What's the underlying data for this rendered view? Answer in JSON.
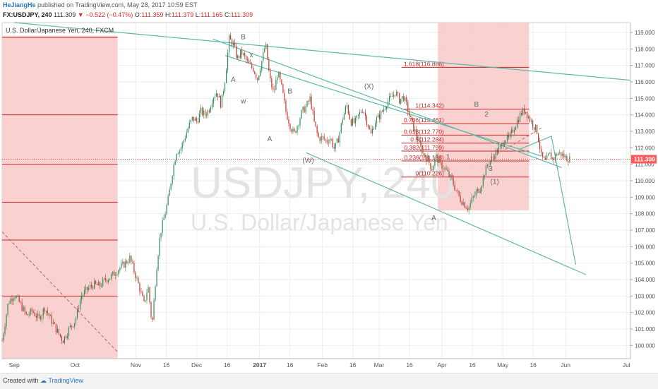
{
  "header": {
    "author": "HeJiangHe",
    "published": "published on TradingView.com, May 28, 2017 10:59 EST",
    "symbol": "FX:USDJPY, 240",
    "price": "111.309",
    "change": "−0.522 (−0.47%)",
    "o_label": "O:",
    "o_value": "111.359",
    "h_label": "H:",
    "h_value": "111.379",
    "l_label": "L:",
    "l_value": "111.165",
    "c_label": "C:",
    "c_value": "111.309"
  },
  "footer": {
    "created_with": "Created with",
    "brand": "TradingView"
  },
  "chart_data": {
    "type": "candlestick",
    "legend_title": "U.S. Dollar/Japanese Yen, 240, FXCM",
    "watermark_symbol": "USDJPY, 240",
    "watermark_name": "U.S. Dollar/Japanese Yen",
    "ylim": [
      99.2,
      119.6
    ],
    "xlim": [
      0,
      310
    ],
    "y_ticks": [
      "100.000",
      "101.000",
      "102.000",
      "103.000",
      "104.000",
      "105.000",
      "106.000",
      "107.000",
      "108.000",
      "109.000",
      "110.000",
      "111.000",
      "112.000",
      "113.000",
      "114.000",
      "115.000",
      "116.000",
      "117.000",
      "118.000",
      "119.000"
    ],
    "x_ticks": [
      {
        "label": "Sep",
        "x": 6
      },
      {
        "label": "Oct",
        "x": 36
      },
      {
        "label": "Nov",
        "x": 66
      },
      {
        "label": "16",
        "x": 81
      },
      {
        "label": "Dec",
        "x": 96
      },
      {
        "label": "16",
        "x": 111
      },
      {
        "label": "2017",
        "x": 127
      },
      {
        "label": "16",
        "x": 142
      },
      {
        "label": "Feb",
        "x": 158
      },
      {
        "label": "16",
        "x": 173
      },
      {
        "label": "Mar",
        "x": 186
      },
      {
        "label": "16",
        "x": 201
      },
      {
        "label": "Apr",
        "x": 217
      },
      {
        "label": "16",
        "x": 232
      },
      {
        "label": "May",
        "x": 247
      },
      {
        "label": "16",
        "x": 262
      },
      {
        "label": "Jun",
        "x": 278
      },
      {
        "label": "Jul",
        "x": 308
      }
    ],
    "current_price": 111.309,
    "current_price_label": "111.309",
    "price_path": [
      [
        0,
        100.3
      ],
      [
        3,
        102.6
      ],
      [
        6,
        103.1
      ],
      [
        9,
        102.5
      ],
      [
        12,
        101.8
      ],
      [
        15,
        102.1
      ],
      [
        18,
        101.6
      ],
      [
        21,
        102.3
      ],
      [
        24,
        101.6
      ],
      [
        27,
        100.9
      ],
      [
        30,
        100.3
      ],
      [
        33,
        101.0
      ],
      [
        36,
        101.5
      ],
      [
        39,
        103.0
      ],
      [
        42,
        103.4
      ],
      [
        45,
        103.7
      ],
      [
        48,
        103.6
      ],
      [
        51,
        104.0
      ],
      [
        54,
        104.2
      ],
      [
        57,
        104.6
      ],
      [
        60,
        104.9
      ],
      [
        63,
        105.3
      ],
      [
        66,
        104.2
      ],
      [
        68,
        103.4
      ],
      [
        70,
        102.5
      ],
      [
        72,
        103.6
      ],
      [
        74,
        101.2
      ],
      [
        76,
        104.5
      ],
      [
        78,
        106.8
      ],
      [
        80,
        107.8
      ],
      [
        82,
        108.9
      ],
      [
        84,
        110.5
      ],
      [
        86,
        111.8
      ],
      [
        88,
        111.9
      ],
      [
        90,
        112.6
      ],
      [
        92,
        113.3
      ],
      [
        94,
        113.8
      ],
      [
        96,
        113.6
      ],
      [
        98,
        114.2
      ],
      [
        100,
        114.0
      ],
      [
        102,
        114.3
      ],
      [
        104,
        115.1
      ],
      [
        106,
        115.4
      ],
      [
        108,
        114.6
      ],
      [
        110,
        116.2
      ],
      [
        112,
        118.6
      ],
      [
        114,
        118.3
      ],
      [
        116,
        117.4
      ],
      [
        118,
        117.8
      ],
      [
        120,
        117.4
      ],
      [
        122,
        117.0
      ],
      [
        124,
        116.8
      ],
      [
        126,
        116.2
      ],
      [
        128,
        117.2
      ],
      [
        130,
        118.3
      ],
      [
        132,
        116.2
      ],
      [
        134,
        115.3
      ],
      [
        136,
        116.6
      ],
      [
        138,
        115.6
      ],
      [
        140,
        114.2
      ],
      [
        142,
        113.4
      ],
      [
        144,
        112.8
      ],
      [
        146,
        113.5
      ],
      [
        148,
        114.2
      ],
      [
        150,
        114.5
      ],
      [
        152,
        115.0
      ],
      [
        154,
        113.5
      ],
      [
        156,
        112.6
      ],
      [
        158,
        112.6
      ],
      [
        160,
        112.4
      ],
      [
        162,
        112.6
      ],
      [
        164,
        111.9
      ],
      [
        166,
        112.6
      ],
      [
        168,
        113.8
      ],
      [
        170,
        114.6
      ],
      [
        172,
        113.6
      ],
      [
        174,
        113.5
      ],
      [
        176,
        114.0
      ],
      [
        178,
        114.4
      ],
      [
        180,
        113.6
      ],
      [
        182,
        112.8
      ],
      [
        184,
        113.6
      ],
      [
        186,
        113.9
      ],
      [
        188,
        114.3
      ],
      [
        190,
        114.8
      ],
      [
        192,
        115.0
      ],
      [
        194,
        115.4
      ],
      [
        196,
        114.9
      ],
      [
        198,
        115.1
      ],
      [
        200,
        114.4
      ],
      [
        202,
        113.5
      ],
      [
        204,
        112.9
      ],
      [
        206,
        112.2
      ],
      [
        208,
        111.6
      ],
      [
        210,
        111.3
      ],
      [
        212,
        110.7
      ],
      [
        214,
        111.5
      ],
      [
        216,
        111.0
      ],
      [
        218,
        110.8
      ],
      [
        220,
        110.4
      ],
      [
        222,
        110.0
      ],
      [
        224,
        109.4
      ],
      [
        226,
        108.9
      ],
      [
        228,
        108.6
      ],
      [
        230,
        108.3
      ],
      [
        232,
        108.9
      ],
      [
        234,
        109.3
      ],
      [
        236,
        109.6
      ],
      [
        238,
        110.5
      ],
      [
        240,
        111.1
      ],
      [
        242,
        111.4
      ],
      [
        244,
        111.8
      ],
      [
        246,
        112.0
      ],
      [
        248,
        112.6
      ],
      [
        250,
        112.5
      ],
      [
        252,
        113.1
      ],
      [
        254,
        113.6
      ],
      [
        256,
        114.1
      ],
      [
        258,
        114.3
      ],
      [
        260,
        113.8
      ],
      [
        262,
        113.4
      ],
      [
        264,
        113.0
      ],
      [
        266,
        111.5
      ],
      [
        268,
        111.1
      ],
      [
        270,
        111.6
      ],
      [
        272,
        111.3
      ],
      [
        274,
        111.7
      ],
      [
        276,
        111.6
      ],
      [
        278,
        111.4
      ],
      [
        280,
        111.3
      ]
    ],
    "shaded_zones": [
      {
        "x0": 0,
        "x1": 57,
        "y0": 99.2,
        "y1": 118.8,
        "color": "#f9c9c9"
      },
      {
        "x0": 215,
        "x1": 260,
        "y0": 108.2,
        "y1": 119.6,
        "color": "#f9c9c9"
      }
    ],
    "sep_h_levels": [
      118.7,
      114.0,
      111.0,
      108.7,
      106.4,
      103.0
    ],
    "fib_levels": [
      {
        "ratio": "1.618",
        "price": 116.886,
        "label": "1.618(116.886)"
      },
      {
        "ratio": "1",
        "price": 114.342,
        "label": "1(114.342)"
      },
      {
        "ratio": "0.786",
        "price": 113.461,
        "label": "0.786(113.461)"
      },
      {
        "ratio": "0.618",
        "price": 112.77,
        "label": "0.618(112.770)"
      },
      {
        "ratio": "0.5",
        "price": 112.284,
        "label": "0.5(112.284)"
      },
      {
        "ratio": "0.382",
        "price": 111.799,
        "label": "0.382(111.799)"
      },
      {
        "ratio": "0.236",
        "price": 111.198,
        "label": "0.236(111.198)"
      },
      {
        "ratio": "0",
        "price": 110.226,
        "label": "0(110.226)"
      }
    ],
    "fib_range": [
      197,
      260
    ],
    "trendlines": [
      {
        "x0": 6,
        "y0": 119.6,
        "x1": 310,
        "y1": 116.1
      },
      {
        "x0": 104,
        "y0": 118.6,
        "x1": 276,
        "y1": 110.8
      },
      {
        "x0": 150,
        "y0": 111.7,
        "x1": 288,
        "y1": 104.3
      },
      {
        "x0": 110,
        "y0": 117.6,
        "x1": 266,
        "y1": 111.5
      }
    ],
    "projection": [
      [
        255,
        111.9
      ],
      [
        271,
        112.7
      ],
      [
        283,
        104.9
      ]
    ],
    "dashed_lines": [
      {
        "x0": 0,
        "y0": 106.9,
        "x1": 57,
        "y1": 99.6,
        "color": "#c06060"
      },
      {
        "x0": 244,
        "y0": 111.6,
        "x1": 266,
        "y1": 113.2,
        "color": "#d06060"
      }
    ],
    "wave_labels": [
      {
        "text": "B",
        "x": 119,
        "y": 118.6
      },
      {
        "text": "x",
        "x": 123,
        "y": 117.5
      },
      {
        "text": "A",
        "x": 114,
        "y": 116.0
      },
      {
        "text": "w",
        "x": 119,
        "y": 114.7
      },
      {
        "text": "B",
        "x": 142,
        "y": 115.3
      },
      {
        "text": "A",
        "x": 132,
        "y": 112.4
      },
      {
        "text": "(X)",
        "x": 181,
        "y": 115.6
      },
      {
        "text": "(W)",
        "x": 151,
        "y": 111.1
      },
      {
        "text": "A",
        "x": 213,
        "y": 107.6
      },
      {
        "text": "B",
        "x": 234,
        "y": 114.5
      },
      {
        "text": "2",
        "x": 239,
        "y": 113.9
      },
      {
        "text": "1",
        "x": 220,
        "y": 111.3
      },
      {
        "text": "3",
        "x": 241,
        "y": 110.6
      },
      {
        "text": "(1)",
        "x": 243,
        "y": 109.8
      }
    ],
    "colors": {
      "up": "#2e8b57",
      "down": "#c0392b",
      "grid": "#eeeeee",
      "trend": "#5fb8a8",
      "zone": "#f9c9c9",
      "sep_lines": "#c62828",
      "fib_lines": "#c62828",
      "fib_text": "#c62828",
      "price_line": "#d94040",
      "price_box": "#ff5a5a"
    }
  }
}
